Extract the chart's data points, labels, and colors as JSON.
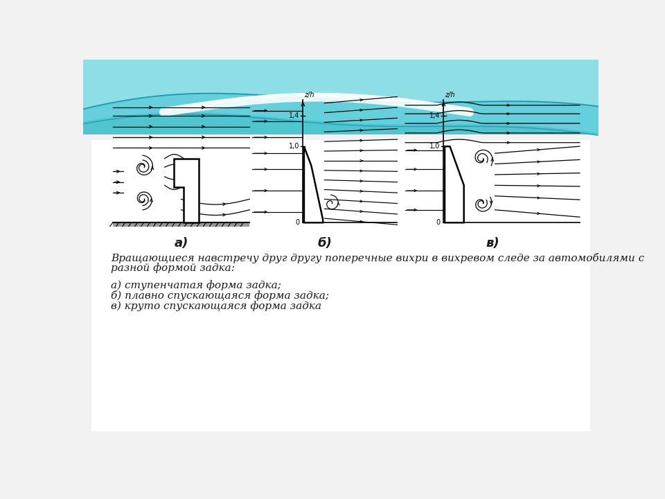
{
  "bg_top_color": "#4fc5d0",
  "bg_body_color": "#f2f2f2",
  "white_color": "#ffffff",
  "label_a": "а)",
  "label_b": "б)",
  "label_v": "в)",
  "caption_main_line1": "Вращающиеся навстречу друг другу поперечные вихри в вихревом следе за автомобилями с",
  "caption_main_line2": "разной формой задка:",
  "caption_a": "а) ступенчатая форма задка;",
  "caption_b": "б) плавно спускающаяся форма задка;",
  "caption_v": "в) круто спускающаяся форма задка",
  "text_color": "#1a1a1a",
  "font_size_caption": 11,
  "font_size_label": 13,
  "axis_tick_14": "1,4",
  "axis_tick_10": "1,0",
  "axis_tick_0": "0",
  "axis_label": "z/h"
}
